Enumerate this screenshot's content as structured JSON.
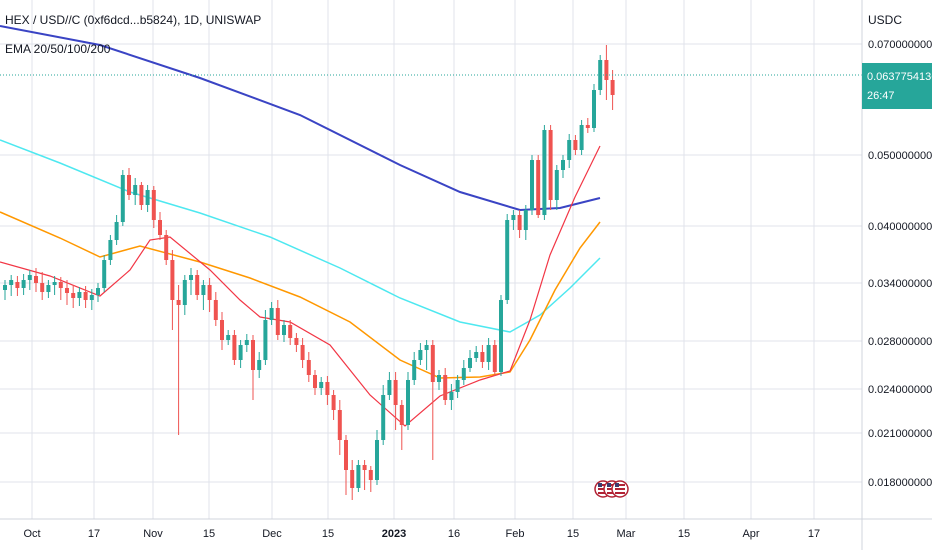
{
  "chart_data": {
    "type": "candlestick",
    "title": "HEX / USD//C (0xf6dcd...b5824), 1D, UNISWAP",
    "subtitle": "EMA 20/50/100/200",
    "currency": "USDC",
    "price_label": "0.0637754136",
    "countdown": "26:47",
    "price_ticks": [
      "0.0700000000",
      "0.0500000000",
      "0.0400000000",
      "0.0340000000",
      "0.0280000000",
      "0.0240000000",
      "0.0210000000",
      "0.0180000000"
    ],
    "price_tick_values": [
      0.07,
      0.05,
      0.04,
      0.034,
      0.028,
      0.024,
      0.021,
      0.018
    ],
    "date_ticks": [
      "Oct",
      "17",
      "Nov",
      "15",
      "Dec",
      "15",
      "2023",
      "16",
      "Feb",
      "15",
      "Mar",
      "15",
      "Apr",
      "17"
    ],
    "grid": true,
    "colors": {
      "up": "#26a69a",
      "down": "#ef5350",
      "ema20": "#f23645",
      "ema50": "#ff9800",
      "ema100": "#4ee8f0",
      "ema200": "#3a44c4",
      "price_badge": "#26a69a",
      "last_line": "#26a69a"
    },
    "events_icon": "us-flag-icon"
  }
}
